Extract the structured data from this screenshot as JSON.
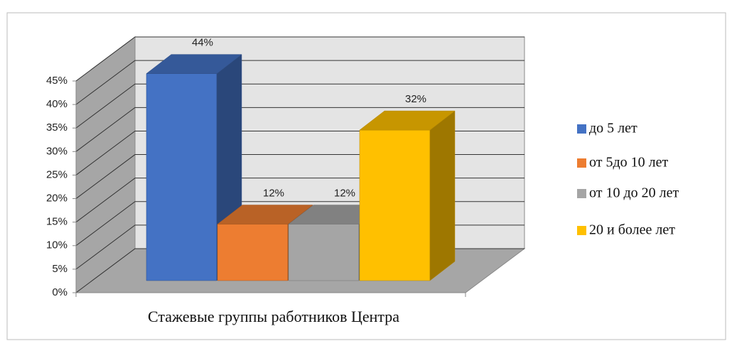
{
  "chart_data": {
    "type": "bar3d",
    "x_label": "Стажевые группы работников Центра",
    "ylim": [
      0,
      45
    ],
    "yticks": [
      {
        "value": 0,
        "label": "0%"
      },
      {
        "value": 5,
        "label": "5%"
      },
      {
        "value": 10,
        "label": "10%"
      },
      {
        "value": 15,
        "label": "15%"
      },
      {
        "value": 20,
        "label": "20%"
      },
      {
        "value": 25,
        "label": "25%"
      },
      {
        "value": 30,
        "label": "30%"
      },
      {
        "value": 35,
        "label": "35%"
      },
      {
        "value": 40,
        "label": "40%"
      },
      {
        "value": 45,
        "label": "45%"
      }
    ],
    "grid": true,
    "legend": "right",
    "series": [
      {
        "name": "до 5 лет",
        "color": "#4472c4",
        "values": [
          44
        ],
        "value_labels": [
          "44%"
        ]
      },
      {
        "name": "от 5до 10 лет",
        "color": "#ed7d31",
        "values": [
          12
        ],
        "value_labels": [
          "12%"
        ]
      },
      {
        "name": "от 10 до 20 лет",
        "color": "#a5a5a5",
        "values": [
          12
        ],
        "value_labels": [
          "12%"
        ]
      },
      {
        "name": "20 и более лет",
        "color": "#ffc000",
        "values": [
          32
        ],
        "value_labels": [
          "32%"
        ]
      }
    ]
  }
}
